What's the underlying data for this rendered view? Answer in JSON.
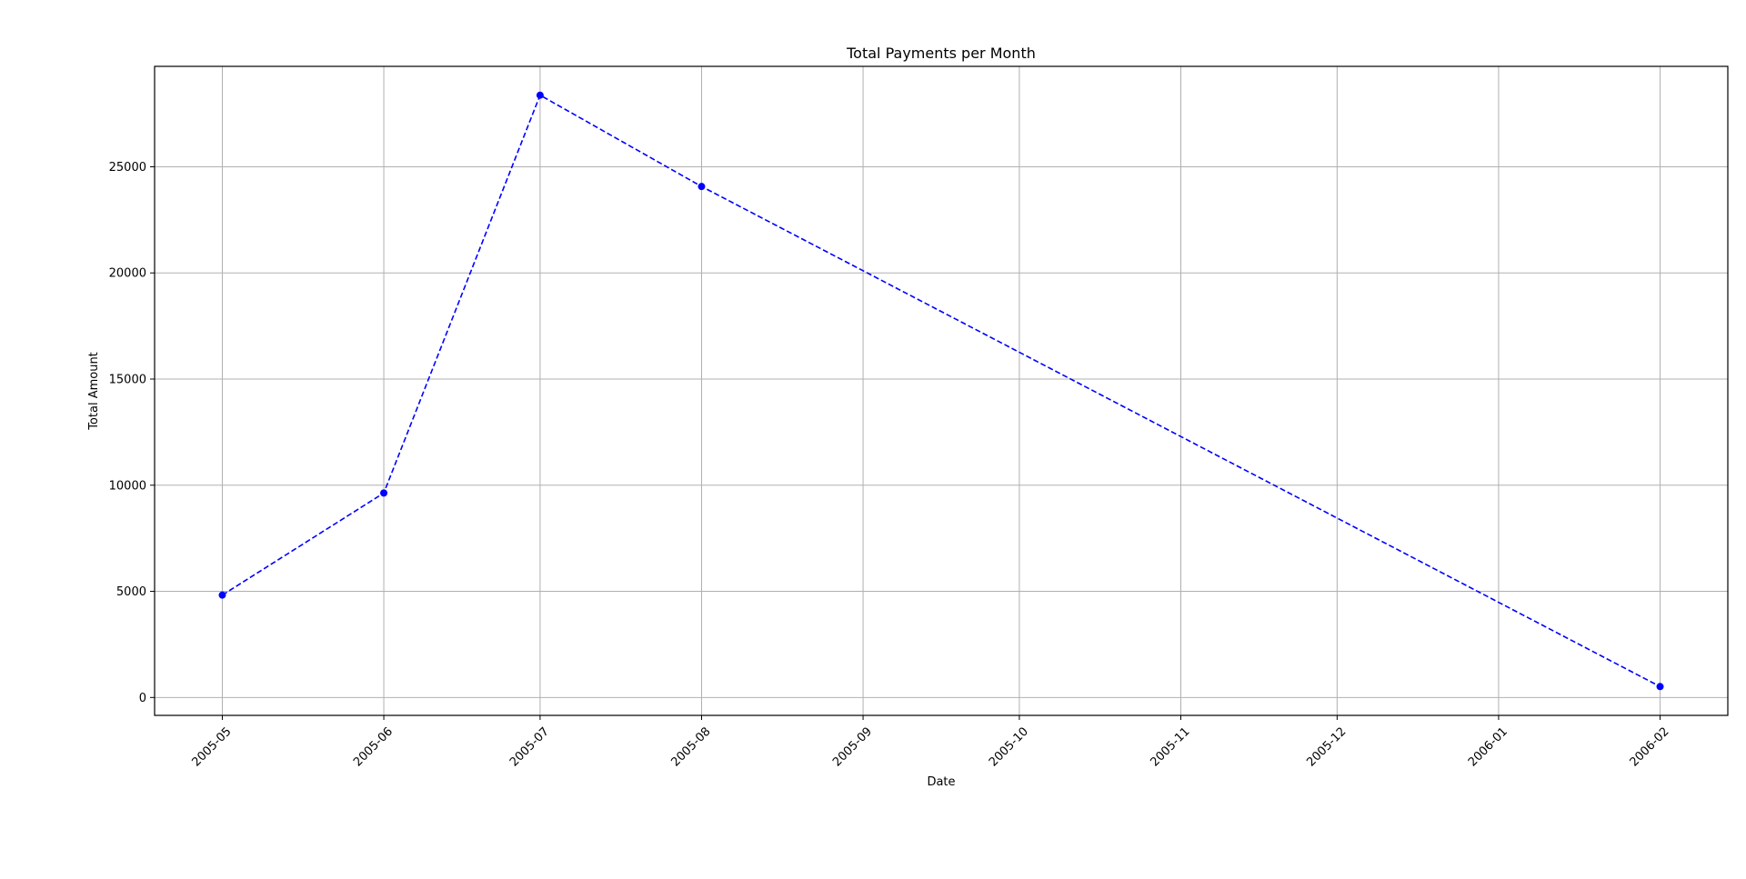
{
  "chart_data": {
    "type": "line",
    "title": "Total Payments per Month",
    "xlabel": "Date",
    "ylabel": "Total Amount",
    "x": [
      "2005-05",
      "2005-06",
      "2005-07",
      "2005-08",
      "2006-02"
    ],
    "series": [
      {
        "values": [
          4824.43,
          9631.88,
          28373.89,
          24072.13,
          514.18
        ],
        "color": "#0000ff",
        "line_style": "dashed",
        "marker": "circle"
      }
    ],
    "xticks": [
      "2005-05",
      "2005-06",
      "2005-07",
      "2005-08",
      "2005-09",
      "2005-10",
      "2005-11",
      "2005-12",
      "2006-01",
      "2006-02"
    ],
    "yticks": [
      0,
      5000,
      10000,
      15000,
      20000,
      25000
    ],
    "xlim": [
      "2005-04-18",
      "2006-02-14"
    ],
    "ylim": [
      -843,
      29731
    ],
    "grid": true
  }
}
